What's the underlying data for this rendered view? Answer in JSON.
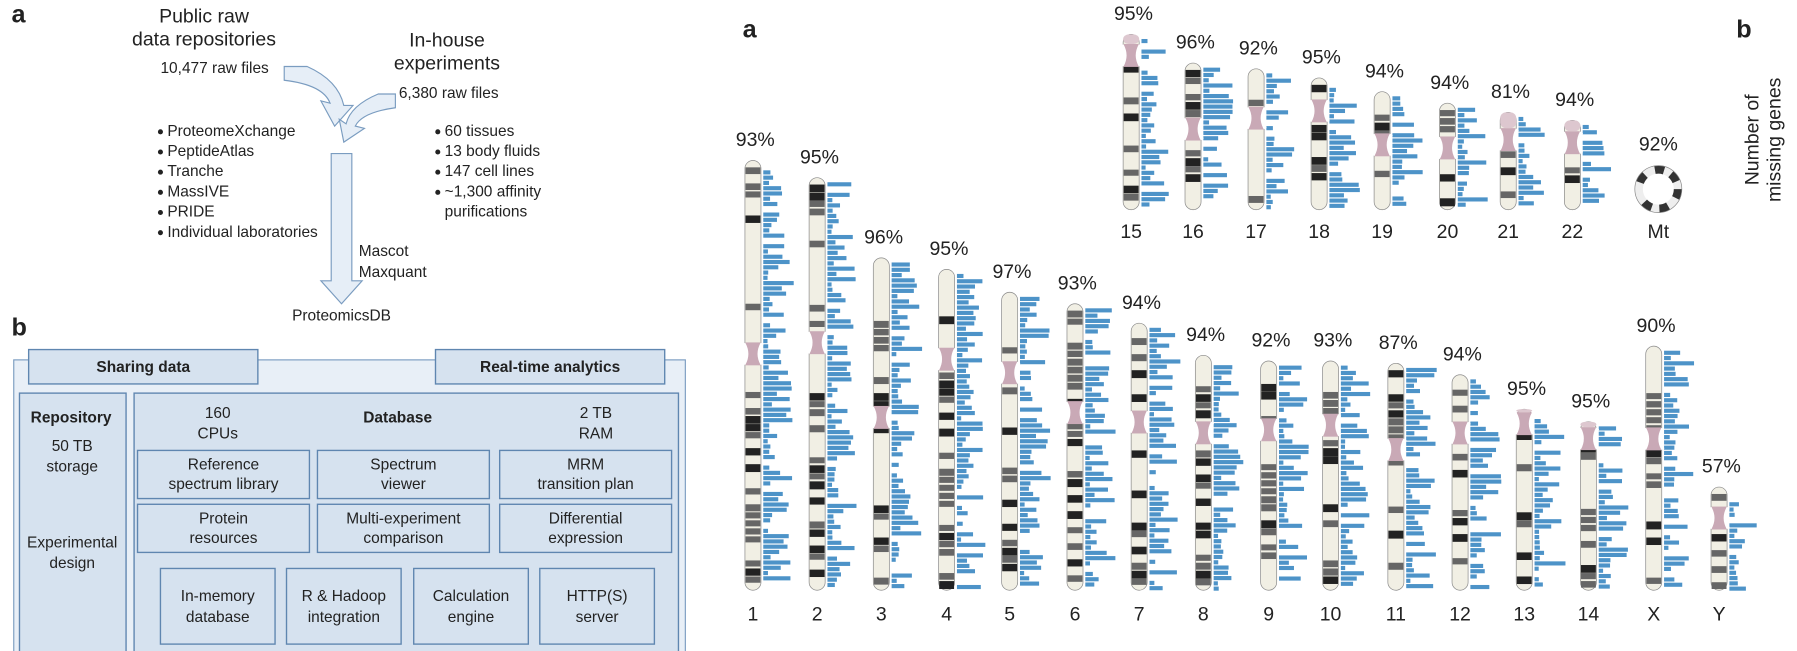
{
  "flow": {
    "label": "a",
    "public": [
      "Public raw",
      "data repositories"
    ],
    "public_files": "10,477 raw files",
    "inhouse": [
      "In-house",
      "experiments"
    ],
    "inhouse_files": "6,380 raw files",
    "repositories": [
      "ProteomeXchange",
      "PeptideAtlas",
      "Tranche",
      "MassIVE",
      "PRIDE",
      "Individual laboratories"
    ],
    "samples": [
      [
        "60 tissues"
      ],
      [
        "13 body fluids"
      ],
      [
        "147 cell lines"
      ],
      [
        "~1,300 affinity",
        "purifications"
      ]
    ],
    "tools": [
      "Mascot",
      "Maxquant"
    ],
    "target": "ProteomicsDB"
  },
  "architecture": {
    "label": "b",
    "sharing": "Sharing data",
    "analytics": "Real-time analytics",
    "repository": {
      "title": "Repository",
      "storage": [
        "50 TB",
        "storage"
      ],
      "design": [
        "Experimental",
        "design"
      ]
    },
    "database": {
      "title": "Database",
      "cpus": [
        "160",
        "CPUs"
      ],
      "ram": [
        "2 TB",
        "RAM"
      ],
      "modules": [
        [
          "Reference",
          "spectrum library"
        ],
        [
          "Spectrum",
          "viewer"
        ],
        [
          "MRM",
          "transition plan"
        ],
        [
          "Protein",
          "resources"
        ],
        [
          "Multi-experiment",
          "comparison"
        ],
        [
          "Differential",
          "expression"
        ]
      ],
      "infrastructure": [
        [
          "In-memory",
          "database"
        ],
        [
          "R & Hadoop",
          "integration"
        ],
        [
          "Calculation",
          "engine"
        ],
        [
          "HTTP(S)",
          "server"
        ]
      ]
    }
  },
  "karyotype": {
    "label": "a",
    "side_label": "b",
    "axis_label": [
      "Number of",
      "missing genes"
    ],
    "chromosomes": [
      {
        "name": "1",
        "coverage": "93%"
      },
      {
        "name": "2",
        "coverage": "95%"
      },
      {
        "name": "3",
        "coverage": "96%"
      },
      {
        "name": "4",
        "coverage": "95%"
      },
      {
        "name": "5",
        "coverage": "97%"
      },
      {
        "name": "6",
        "coverage": "93%"
      },
      {
        "name": "7",
        "coverage": "94%"
      },
      {
        "name": "8",
        "coverage": "94%"
      },
      {
        "name": "9",
        "coverage": "92%"
      },
      {
        "name": "10",
        "coverage": "93%"
      },
      {
        "name": "11",
        "coverage": "87%"
      },
      {
        "name": "12",
        "coverage": "94%"
      },
      {
        "name": "13",
        "coverage": "95%"
      },
      {
        "name": "14",
        "coverage": "95%"
      },
      {
        "name": "X",
        "coverage": "90%"
      },
      {
        "name": "Y",
        "coverage": "57%"
      },
      {
        "name": "15",
        "coverage": "95%"
      },
      {
        "name": "16",
        "coverage": "96%"
      },
      {
        "name": "17",
        "coverage": "92%"
      },
      {
        "name": "18",
        "coverage": "95%"
      },
      {
        "name": "19",
        "coverage": "94%"
      },
      {
        "name": "20",
        "coverage": "94%"
      },
      {
        "name": "21",
        "coverage": "81%"
      },
      {
        "name": "22",
        "coverage": "94%"
      },
      {
        "name": "Mt",
        "coverage": "92%"
      }
    ]
  }
}
